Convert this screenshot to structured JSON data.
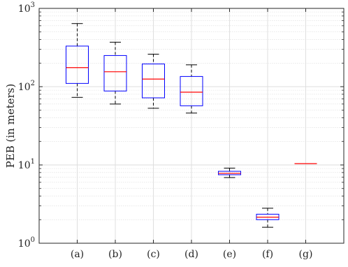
{
  "chart_data": {
    "type": "box",
    "title": "",
    "xlabel": "",
    "ylabel": "PEB (in meters)",
    "yscale": "log",
    "ylim": [
      1,
      1000
    ],
    "yticks": [
      {
        "value": 1,
        "base": "10",
        "exp": "0"
      },
      {
        "value": 10,
        "base": "10",
        "exp": "1"
      },
      {
        "value": 100,
        "base": "10",
        "exp": "2"
      },
      {
        "value": 1000,
        "base": "10",
        "exp": "3"
      }
    ],
    "grid": true,
    "categories": [
      "(a)",
      "(b)",
      "(c)",
      "(d)",
      "(e)",
      "(f)",
      "(g)"
    ],
    "boxes": [
      {
        "label": "(a)",
        "whisker_low": 73,
        "q1": 110,
        "median": 175,
        "q3": 330,
        "whisker_high": 640
      },
      {
        "label": "(b)",
        "whisker_low": 60,
        "q1": 88,
        "median": 155,
        "q3": 250,
        "whisker_high": 370
      },
      {
        "label": "(c)",
        "whisker_low": 53,
        "q1": 72,
        "median": 125,
        "q3": 195,
        "whisker_high": 260
      },
      {
        "label": "(d)",
        "whisker_low": 46,
        "q1": 57,
        "median": 85,
        "q3": 135,
        "whisker_high": 190
      },
      {
        "label": "(e)",
        "whisker_low": 6.9,
        "q1": 7.5,
        "median": 7.8,
        "q3": 8.3,
        "whisker_high": 9.1
      },
      {
        "label": "(f)",
        "whisker_low": 1.6,
        "q1": 2.0,
        "median": 2.15,
        "q3": 2.35,
        "whisker_high": 2.8
      },
      {
        "label": "(g)",
        "whisker_low": 10.4,
        "q1": 10.4,
        "median": 10.4,
        "q3": 10.4,
        "whisker_high": 10.4
      }
    ],
    "colors": {
      "box": "#0000ff",
      "median": "#ff0000",
      "whisker": "#000000",
      "grid": "#dcdcdc",
      "axis": "#262626"
    }
  }
}
